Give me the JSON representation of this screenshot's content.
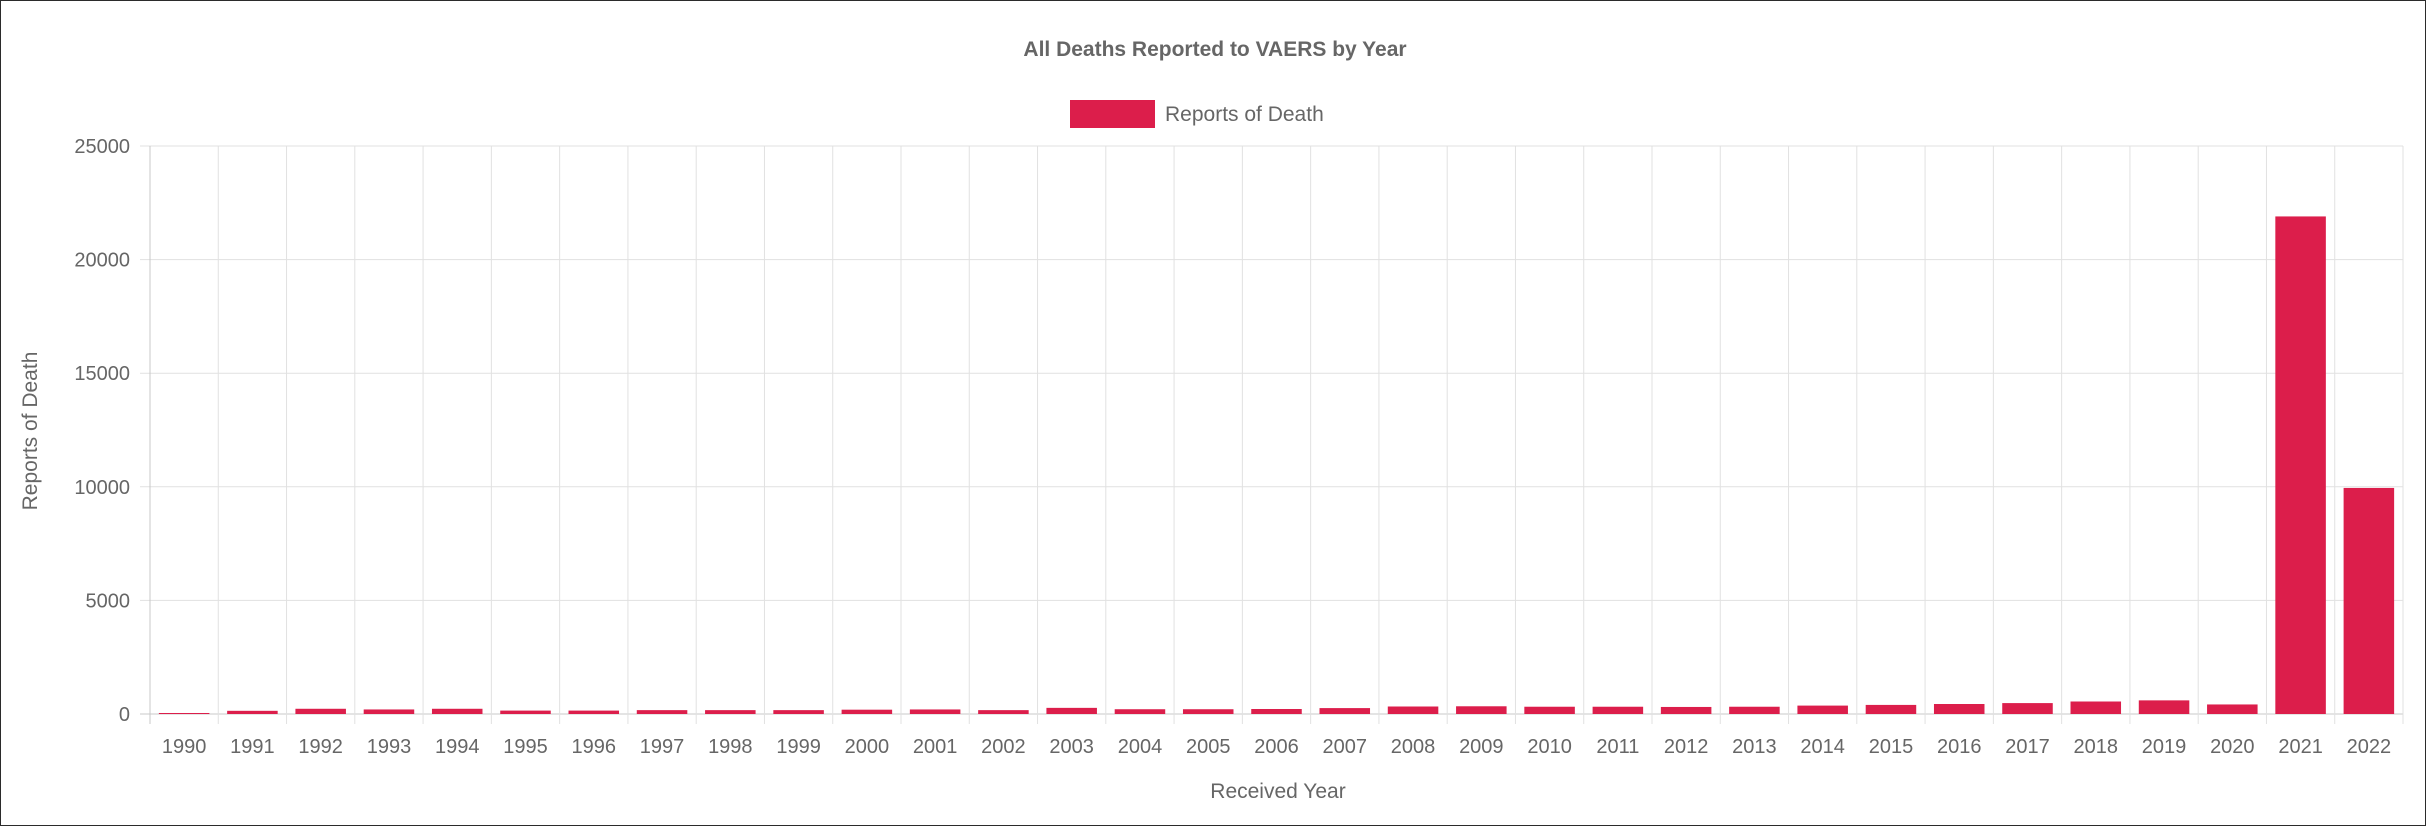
{
  "chart_data": {
    "type": "bar",
    "title": "All Deaths Reported to VAERS by Year",
    "xlabel": "Received Year",
    "ylabel": "Reports of Death",
    "ylim": [
      0,
      25000
    ],
    "yticks": [
      0,
      5000,
      10000,
      15000,
      20000,
      25000
    ],
    "grid": true,
    "legend_position": "top-center",
    "categories": [
      "1990",
      "1991",
      "1992",
      "1993",
      "1994",
      "1995",
      "1996",
      "1997",
      "1998",
      "1999",
      "2000",
      "2001",
      "2002",
      "2003",
      "2004",
      "2005",
      "2006",
      "2007",
      "2008",
      "2009",
      "2010",
      "2011",
      "2012",
      "2013",
      "2014",
      "2015",
      "2016",
      "2017",
      "2018",
      "2019",
      "2020",
      "2021",
      "2022"
    ],
    "series": [
      {
        "name": "Reports of Death",
        "color": "#dc1e4b",
        "values": [
          40,
          140,
          230,
          200,
          230,
          150,
          150,
          170,
          170,
          170,
          190,
          200,
          170,
          270,
          210,
          210,
          220,
          260,
          330,
          340,
          320,
          320,
          310,
          320,
          370,
          400,
          440,
          480,
          550,
          600,
          420,
          21900,
          9950
        ]
      }
    ]
  }
}
